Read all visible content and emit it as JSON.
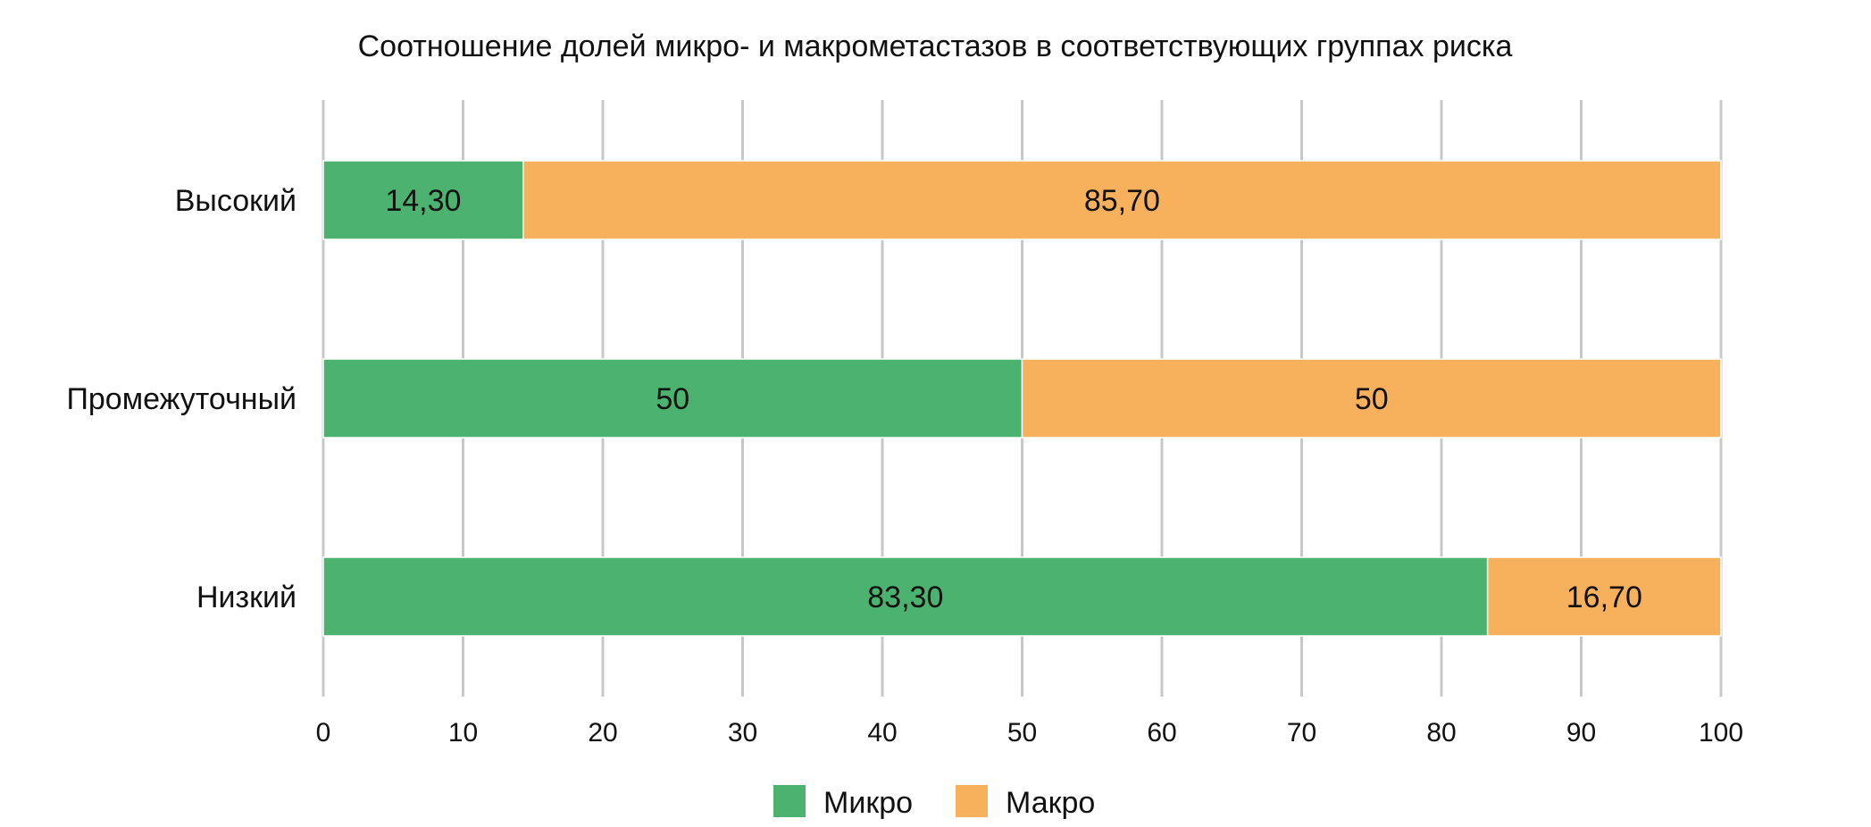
{
  "chart_data": {
    "type": "bar",
    "orientation": "horizontal",
    "stacked": true,
    "title": "Соотношение долей микро- и макрометастазов в соответствующих группах риска",
    "categories": [
      "Высокий",
      "Промежуточный",
      "Низкий"
    ],
    "series": [
      {
        "name": "Микро",
        "values": [
          14.3,
          50,
          83.3
        ],
        "labels": [
          "14,30",
          "50",
          "83,30"
        ],
        "color": "#4bb26f"
      },
      {
        "name": "Макро",
        "values": [
          85.7,
          50,
          16.7
        ],
        "labels": [
          "85,70",
          "50",
          "16,70"
        ],
        "color": "#f7b15d"
      }
    ],
    "xlim": [
      0,
      100
    ],
    "xticks": [
      0,
      10,
      20,
      30,
      40,
      50,
      60,
      70,
      80,
      90,
      100
    ],
    "grid": true,
    "legend": "bottom"
  }
}
